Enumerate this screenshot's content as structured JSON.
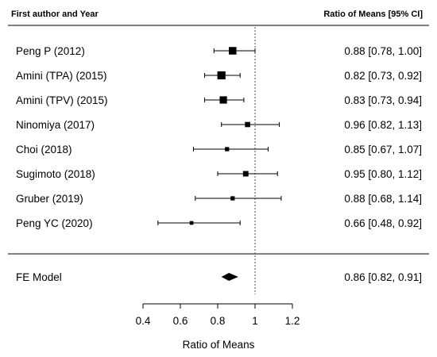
{
  "chart_data": {
    "type": "forest",
    "header": {
      "study_column": "First author and Year",
      "estimate_column": "Ratio of Means [95% CI]"
    },
    "studies": [
      {
        "label": "Peng P (2012)",
        "estimate": 0.88,
        "lower": 0.78,
        "upper": 1.0,
        "weight": 1.0,
        "ci_text": "0.88 [0.78, 1.00]"
      },
      {
        "label": "Amini (TPA) (2015)",
        "estimate": 0.82,
        "lower": 0.73,
        "upper": 0.92,
        "weight": 1.1,
        "ci_text": "0.82 [0.73, 0.92]"
      },
      {
        "label": "Amini (TPV) (2015)",
        "estimate": 0.83,
        "lower": 0.73,
        "upper": 0.94,
        "weight": 0.95,
        "ci_text": "0.83 [0.73, 0.94]"
      },
      {
        "label": "Ninomiya (2017)",
        "estimate": 0.96,
        "lower": 0.82,
        "upper": 1.13,
        "weight": 0.55,
        "ci_text": "0.96 [0.82, 1.13]"
      },
      {
        "label": "Choi (2018)",
        "estimate": 0.85,
        "lower": 0.67,
        "upper": 1.07,
        "weight": 0.35,
        "ci_text": "0.85 [0.67, 1.07]"
      },
      {
        "label": "Sugimoto (2018)",
        "estimate": 0.95,
        "lower": 0.8,
        "upper": 1.12,
        "weight": 0.6,
        "ci_text": "0.95 [0.80, 1.12]"
      },
      {
        "label": "Gruber (2019)",
        "estimate": 0.88,
        "lower": 0.68,
        "upper": 1.14,
        "weight": 0.35,
        "ci_text": "0.88 [0.68, 1.14]"
      },
      {
        "label": "Peng YC (2020)",
        "estimate": 0.66,
        "lower": 0.48,
        "upper": 0.92,
        "weight": 0.25,
        "ci_text": "0.66 [0.48, 0.92]"
      }
    ],
    "summary": {
      "label": "FE Model",
      "estimate": 0.86,
      "lower": 0.82,
      "upper": 0.91,
      "ci_text": "0.86 [0.82, 0.91]"
    },
    "reference_line": 1,
    "xlim": [
      0.4,
      1.2
    ],
    "xticks": [
      0.4,
      0.6,
      0.8,
      1,
      1.2
    ],
    "xtick_labels": [
      "0.4",
      "0.6",
      "0.8",
      "1",
      "1.2"
    ],
    "xlabel": "Ratio of Means"
  }
}
